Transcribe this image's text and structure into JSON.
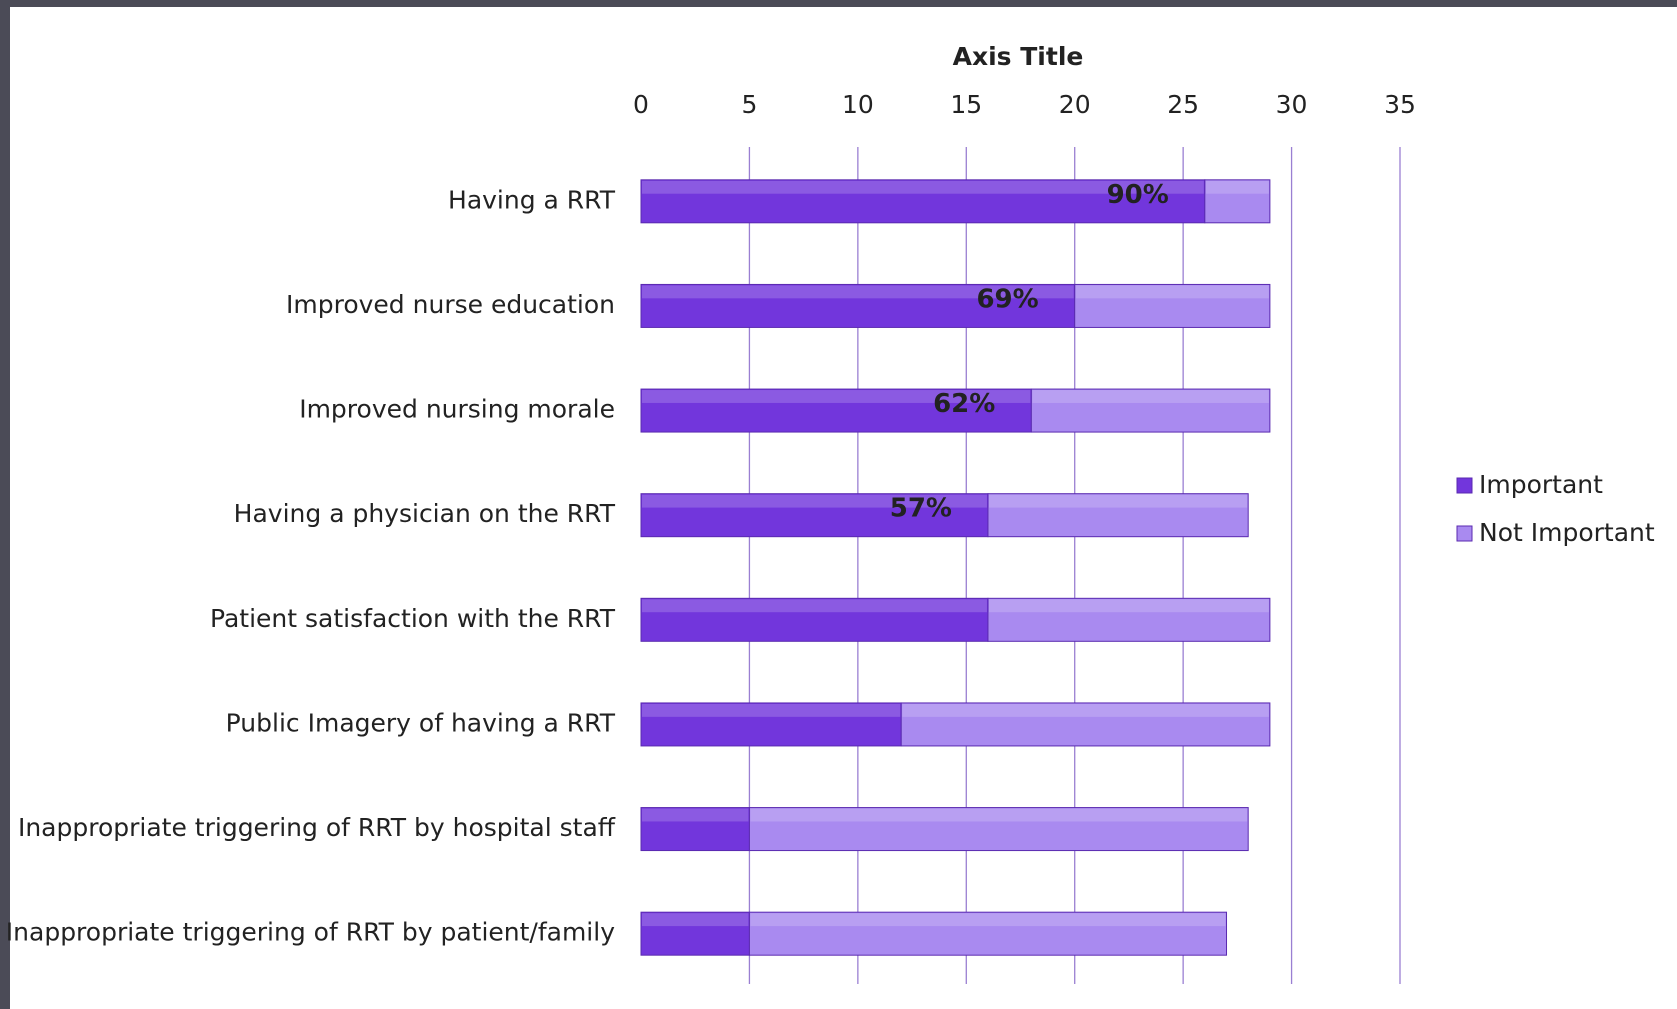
{
  "chart_data": {
    "type": "stacked-barh",
    "x_axis_title": "Axis Title",
    "categories": [
      "Having a RRT",
      "Improved nurse education",
      "Improved nursing morale",
      "Having a physician on the RRT",
      "Patient satisfaction with the RRT",
      "Public Imagery of having a  RRT",
      "Inappropriate triggering of RRT by hospital staff",
      "Inappropriate triggering of RRT by patient/family"
    ],
    "series": [
      {
        "name": "Important",
        "color": "#7236dc",
        "values": [
          26,
          20,
          18,
          16,
          16,
          12,
          5,
          5
        ]
      },
      {
        "name": "Not Important",
        "color": "#a98af0",
        "values": [
          3,
          9,
          11,
          12,
          13,
          17,
          23,
          22
        ]
      }
    ],
    "annotations": [
      "90%",
      "69%",
      "62%",
      "57%",
      null,
      null,
      null,
      null
    ],
    "xlim": [
      0,
      35
    ],
    "xticks": [
      0,
      5,
      10,
      15,
      20,
      25,
      30,
      35
    ],
    "grid": true,
    "grid_color": "#9a7fd2",
    "legend": "right"
  }
}
